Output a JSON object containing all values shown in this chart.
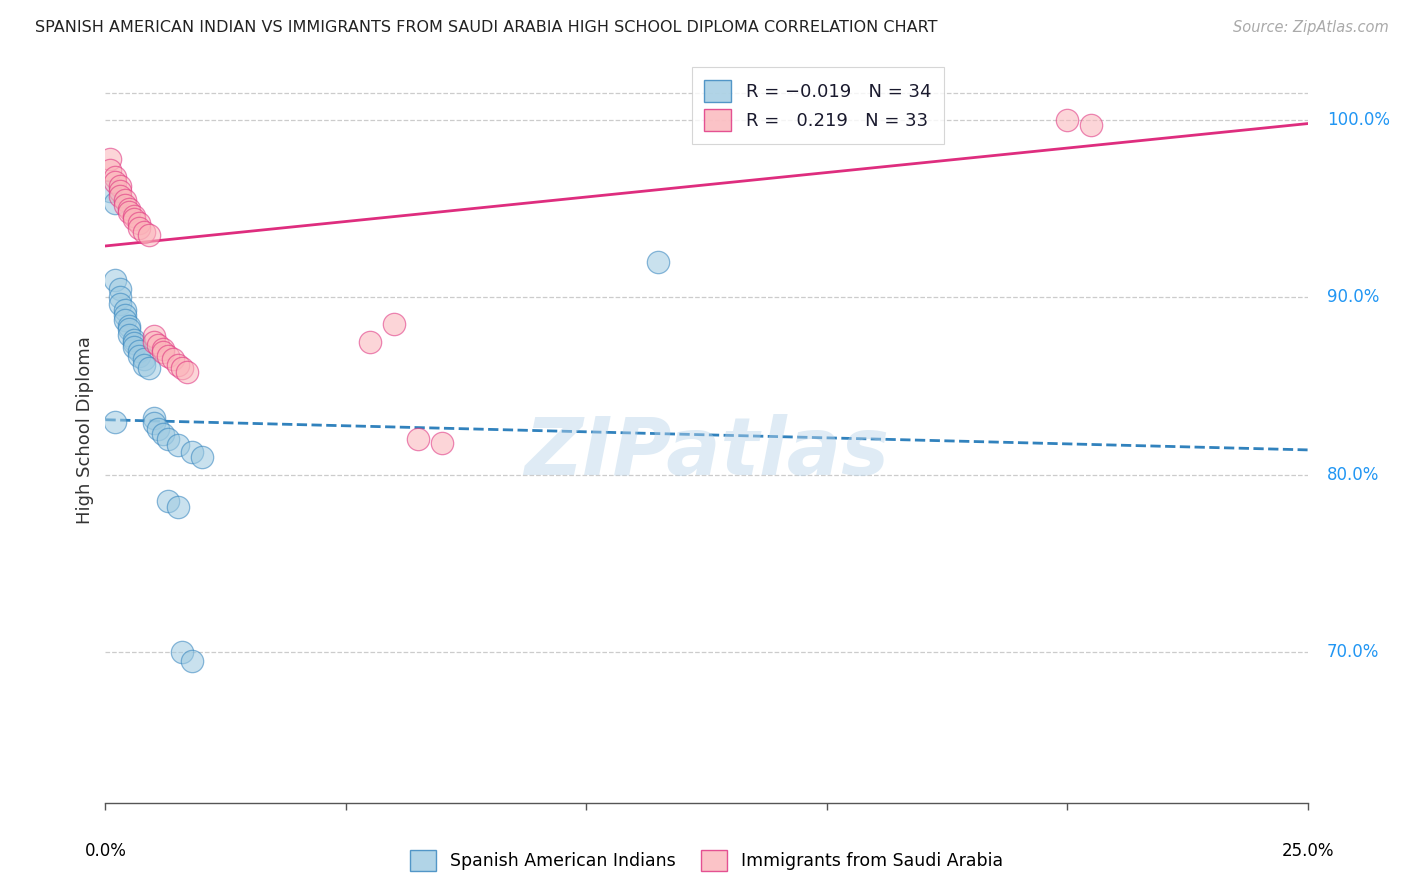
{
  "title": "SPANISH AMERICAN INDIAN VS IMMIGRANTS FROM SAUDI ARABIA HIGH SCHOOL DIPLOMA CORRELATION CHART",
  "source": "Source: ZipAtlas.com",
  "ylabel": "High School Diploma",
  "ytick_labels": [
    "70.0%",
    "80.0%",
    "90.0%",
    "100.0%"
  ],
  "ytick_values": [
    0.7,
    0.8,
    0.9,
    1.0
  ],
  "xlim": [
    0.0,
    0.25
  ],
  "ylim": [
    0.615,
    1.035
  ],
  "legend_blue_r": "-0.019",
  "legend_blue_n": "34",
  "legend_pink_r": "0.219",
  "legend_pink_n": "33",
  "blue_face": "#9ecae1",
  "pink_face": "#fbb4b9",
  "blue_edge": "#3182bd",
  "pink_edge": "#de2d7e",
  "blue_line": "#3182bd",
  "pink_line": "#de2d7e",
  "watermark": "ZIPatlas",
  "blue_x": [
    0.001,
    0.002,
    0.002,
    0.003,
    0.003,
    0.003,
    0.004,
    0.004,
    0.004,
    0.005,
    0.005,
    0.005,
    0.006,
    0.006,
    0.006,
    0.007,
    0.007,
    0.008,
    0.008,
    0.009,
    0.01,
    0.01,
    0.011,
    0.012,
    0.013,
    0.015,
    0.018,
    0.02,
    0.002,
    0.115,
    0.013,
    0.015,
    0.016,
    0.018
  ],
  "blue_y": [
    0.96,
    0.953,
    0.91,
    0.905,
    0.9,
    0.896,
    0.893,
    0.89,
    0.887,
    0.884,
    0.882,
    0.879,
    0.876,
    0.874,
    0.872,
    0.87,
    0.867,
    0.865,
    0.862,
    0.86,
    0.832,
    0.829,
    0.826,
    0.823,
    0.82,
    0.817,
    0.813,
    0.81,
    0.83,
    0.92,
    0.785,
    0.782,
    0.7,
    0.695
  ],
  "pink_x": [
    0.001,
    0.001,
    0.002,
    0.002,
    0.003,
    0.003,
    0.003,
    0.004,
    0.004,
    0.005,
    0.005,
    0.006,
    0.006,
    0.007,
    0.007,
    0.008,
    0.009,
    0.01,
    0.01,
    0.011,
    0.012,
    0.012,
    0.013,
    0.014,
    0.015,
    0.016,
    0.017,
    0.055,
    0.06,
    0.065,
    0.07,
    0.2,
    0.205
  ],
  "pink_y": [
    0.978,
    0.972,
    0.968,
    0.965,
    0.963,
    0.96,
    0.957,
    0.955,
    0.952,
    0.95,
    0.948,
    0.946,
    0.944,
    0.942,
    0.939,
    0.937,
    0.935,
    0.878,
    0.875,
    0.873,
    0.871,
    0.869,
    0.867,
    0.865,
    0.862,
    0.86,
    0.858,
    0.875,
    0.885,
    0.82,
    0.818,
    1.0,
    0.997
  ],
  "blue_trend_x": [
    0.0,
    0.25
  ],
  "blue_trend_y": [
    0.831,
    0.814
  ],
  "pink_trend_x": [
    0.0,
    0.25
  ],
  "pink_trend_y": [
    0.929,
    0.998
  ]
}
